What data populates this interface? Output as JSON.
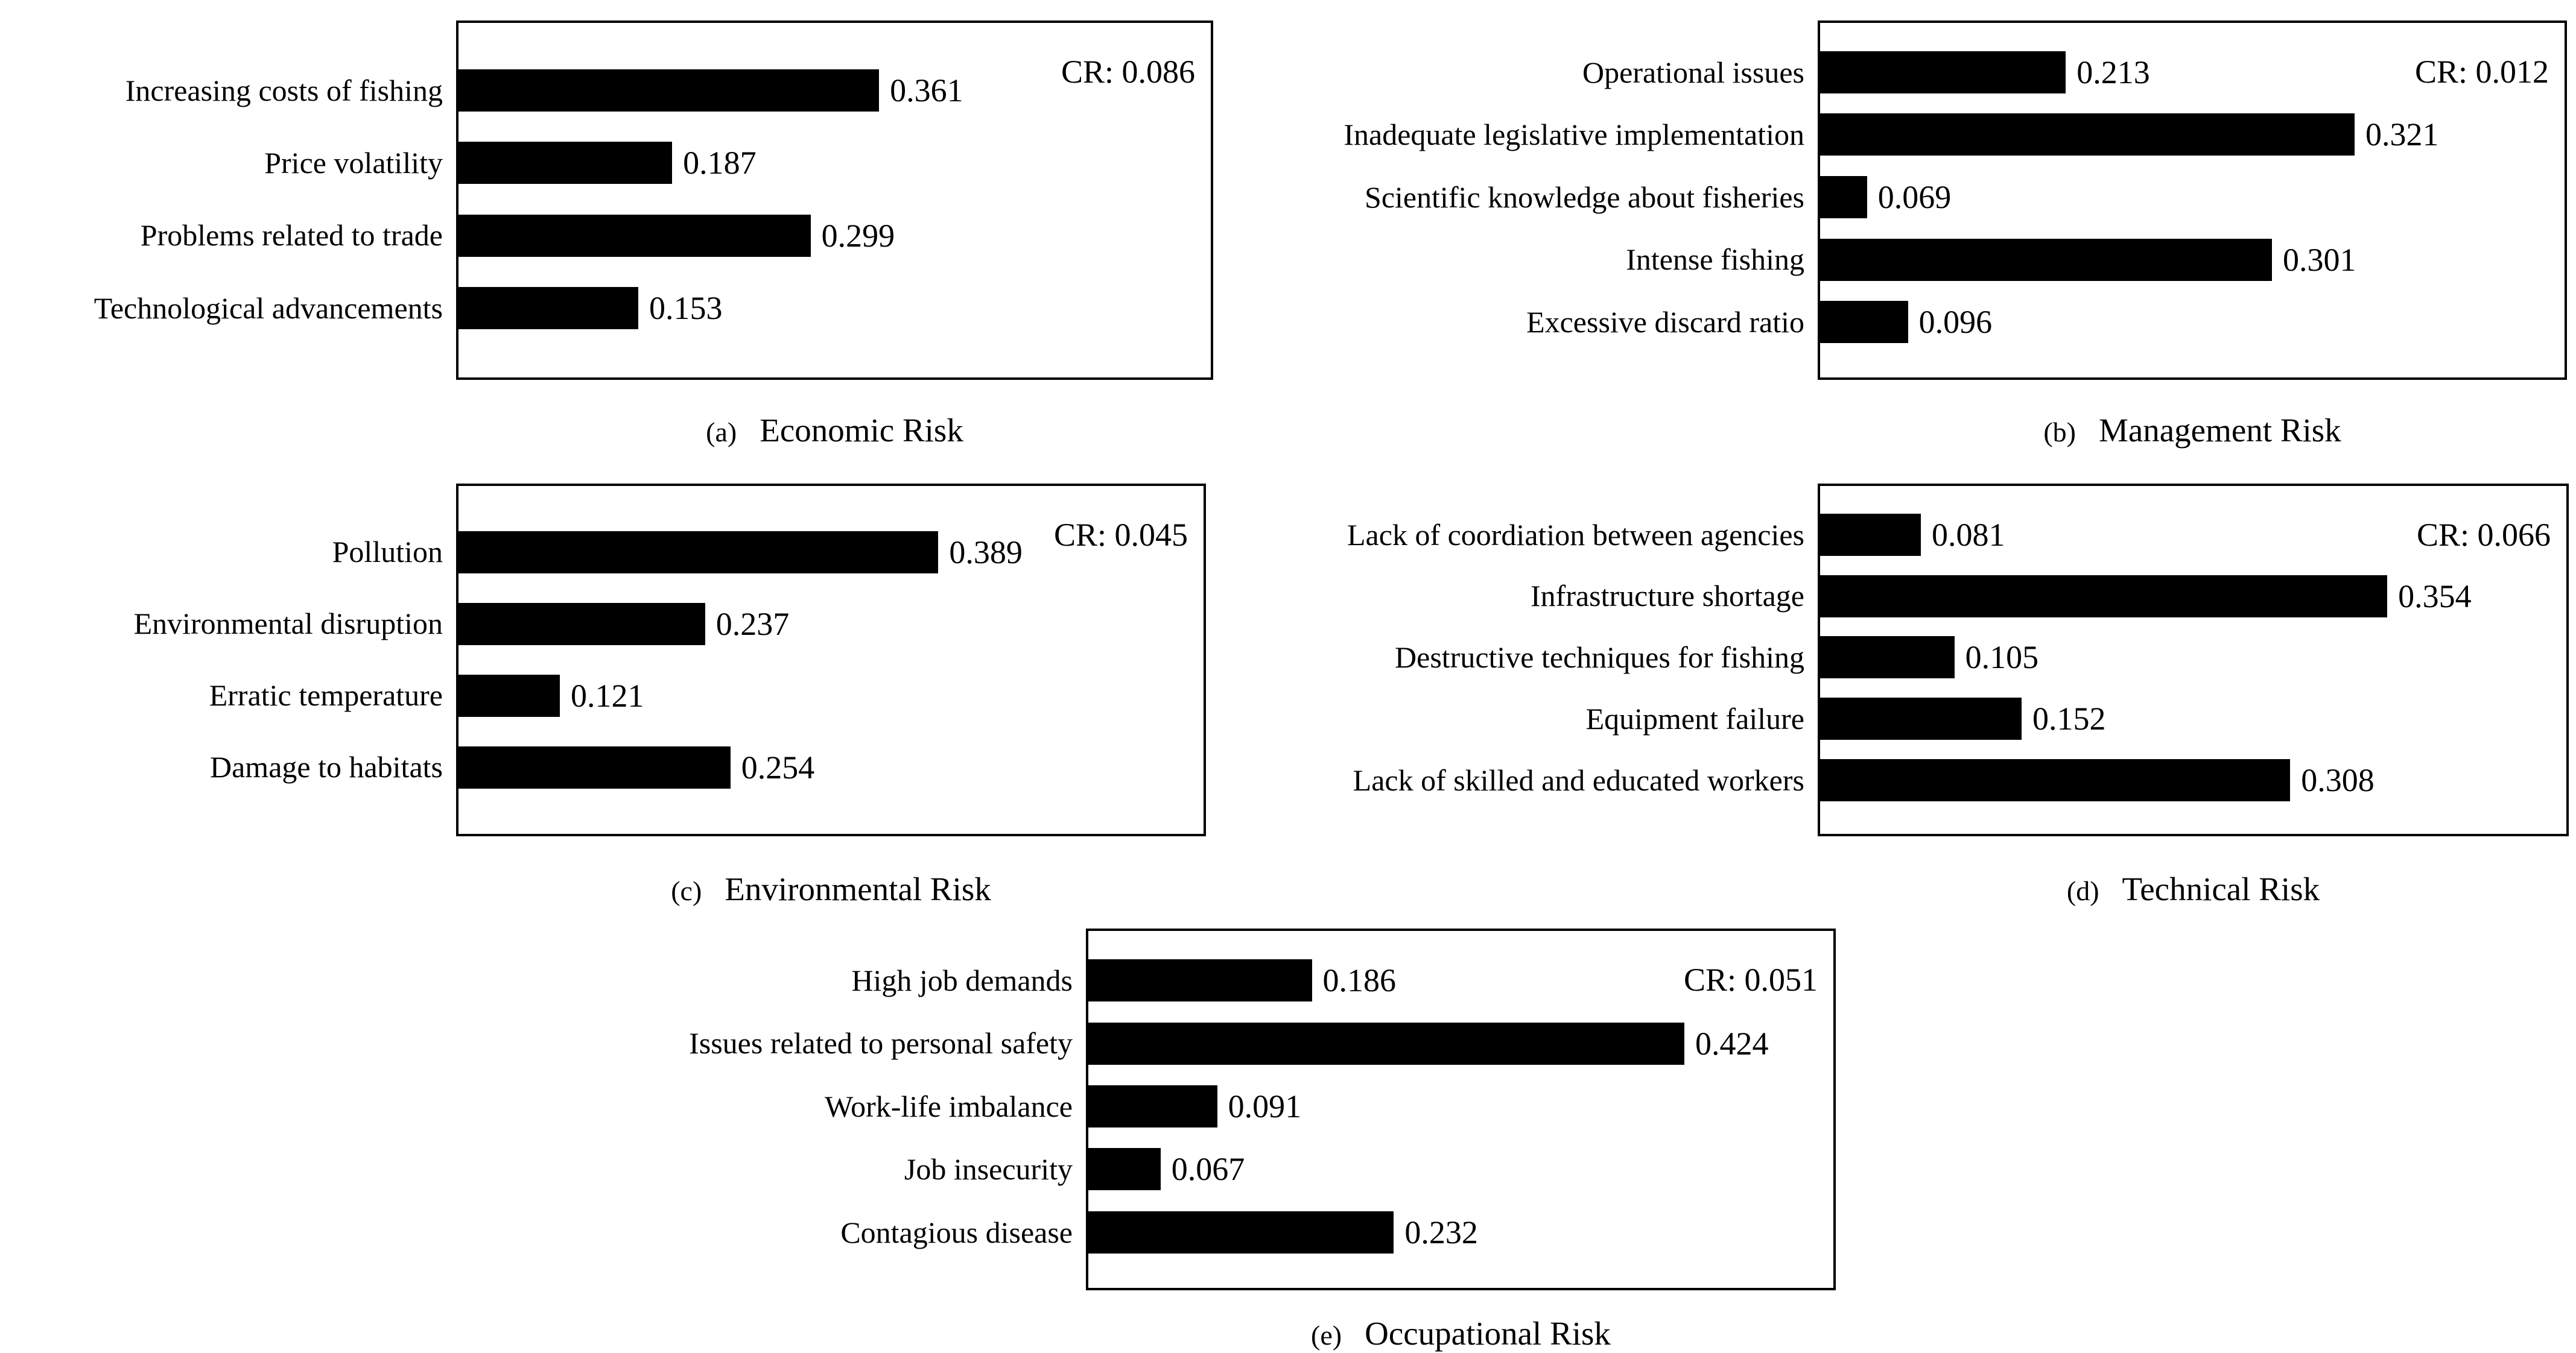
{
  "figure": {
    "background": "#ffffff",
    "bar_color": "#000000",
    "text_color": "#000000",
    "border_color": "#000000"
  },
  "chart_data": [
    {
      "id": "a",
      "type": "bar",
      "orientation": "horizontal",
      "caption_letter": "(a)",
      "title": "Economic Risk",
      "consistency_ratio_label": "CR: 0.086",
      "categories": [
        "Increasing costs of fishing",
        "Price volatility",
        "Problems related to trade",
        "Technological advancements"
      ],
      "values": [
        0.361,
        0.187,
        0.299,
        0.153
      ],
      "value_labels": [
        "0.361",
        "0.187",
        "0.299",
        "0.153"
      ],
      "bar_length_fractions": [
        0.559,
        0.284,
        0.468,
        0.239
      ],
      "xlim_implied": [
        0,
        0.65
      ],
      "grid": false,
      "legend": "none"
    },
    {
      "id": "b",
      "type": "bar",
      "orientation": "horizontal",
      "caption_letter": "(b)",
      "title": "Management Risk",
      "consistency_ratio_label": "CR: 0.012",
      "categories": [
        "Operational issues",
        "Inadequate legislative implementation",
        "Scientific knowledge about fisheries",
        "Intense fishing",
        "Excessive discard ratio"
      ],
      "values": [
        0.213,
        0.321,
        0.069,
        0.301,
        0.096
      ],
      "value_labels": [
        "0.213",
        "0.321",
        "0.069",
        "0.301",
        "0.096"
      ],
      "bar_length_fractions": [
        0.33,
        0.718,
        0.063,
        0.607,
        0.118
      ],
      "xlim_implied": [
        0,
        0.45
      ],
      "grid": false,
      "legend": "none"
    },
    {
      "id": "c",
      "type": "bar",
      "orientation": "horizontal",
      "caption_letter": "(c)",
      "title": "Environmental Risk",
      "consistency_ratio_label": "CR: 0.045",
      "categories": [
        "Pollution",
        "Environmental disruption",
        "Erratic temperature",
        "Damage to habitats"
      ],
      "values": [
        0.389,
        0.237,
        0.121,
        0.254
      ],
      "value_labels": [
        "0.389",
        "0.237",
        "0.121",
        "0.254"
      ],
      "bar_length_fractions": [
        0.644,
        0.331,
        0.136,
        0.365
      ],
      "xlim_implied": [
        0,
        0.6
      ],
      "grid": false,
      "legend": "none"
    },
    {
      "id": "d",
      "type": "bar",
      "orientation": "horizontal",
      "caption_letter": "(d)",
      "title": "Technical Risk",
      "consistency_ratio_label": "CR: 0.066",
      "categories": [
        "Lack of coordiation between agencies",
        "Infrastructure shortage",
        "Destructive techniques for fishing",
        "Equipment failure",
        "Lack of skilled and educated workers"
      ],
      "values": [
        0.081,
        0.354,
        0.105,
        0.152,
        0.308
      ],
      "value_labels": [
        "0.081",
        "0.354",
        "0.105",
        "0.152",
        "0.308"
      ],
      "bar_length_fractions": [
        0.135,
        0.76,
        0.18,
        0.27,
        0.63
      ],
      "xlim_implied": [
        0,
        0.47
      ],
      "grid": false,
      "legend": "none"
    },
    {
      "id": "e",
      "type": "bar",
      "orientation": "horizontal",
      "caption_letter": "(e)",
      "title": "Occupational Risk",
      "consistency_ratio_label": "CR: 0.051",
      "categories": [
        "High job demands",
        "Issues related to personal safety",
        "Work-life imbalance",
        "Job insecurity",
        "Contagious disease"
      ],
      "values": [
        0.186,
        0.424,
        0.091,
        0.067,
        0.232
      ],
      "value_labels": [
        "0.186",
        "0.424",
        "0.091",
        "0.067",
        "0.232"
      ],
      "bar_length_fractions": [
        0.3,
        0.8,
        0.173,
        0.097,
        0.41
      ],
      "xlim_implied": [
        0,
        0.53
      ],
      "grid": false,
      "legend": "none"
    }
  ]
}
